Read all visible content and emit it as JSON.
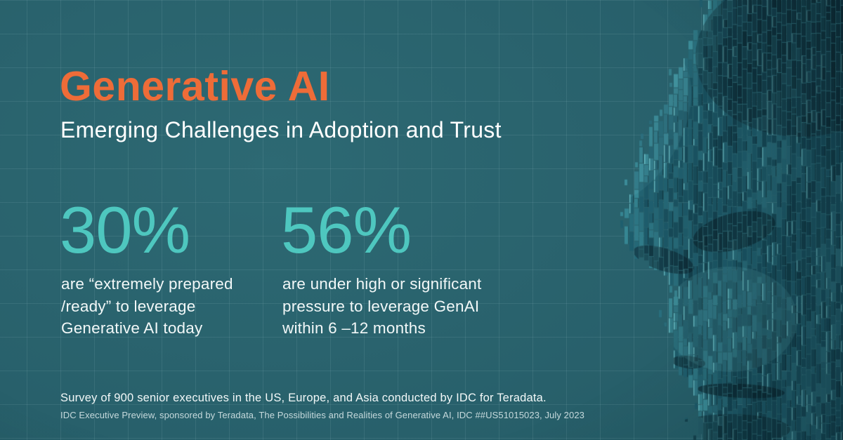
{
  "header": {
    "title": "Generative AI",
    "subtitle": "Emerging Challenges in Adoption and Trust"
  },
  "stats": [
    {
      "value": "30%",
      "description": "are “extremely prepared\n/ready” to leverage\nGenerative AI today"
    },
    {
      "value": "56%",
      "description": "are under high or significant\npressure to leverage GenAI\nwithin 6 –12 months"
    }
  ],
  "footer": {
    "line1": "Survey of 900 senior executives in the US, Europe, and Asia conducted by IDC for Teradata.",
    "line2": "IDC Executive Preview, sponsored by Teradata, The Possibilities and Realities of Generative AI, IDC ##US51015023, July 2023"
  },
  "illustration": {
    "name": "voxel-face",
    "palette": {
      "dark": "#0B2C37",
      "mid": "#1F6070",
      "light": "#4AA9B4",
      "highlight": "#86E2E6",
      "gap_shadow": "rgba(6,26,34,0.45)"
    }
  },
  "colors": {
    "background": "#28606B",
    "grid_line": "rgba(190,225,230,0.10)",
    "title_orange": "#EE6C38",
    "stat_teal": "#4EC7BF",
    "text_white": "#FFFFFF",
    "text_soft": "#F2F8F8",
    "text_dim": "rgba(230,243,244,0.82)"
  }
}
